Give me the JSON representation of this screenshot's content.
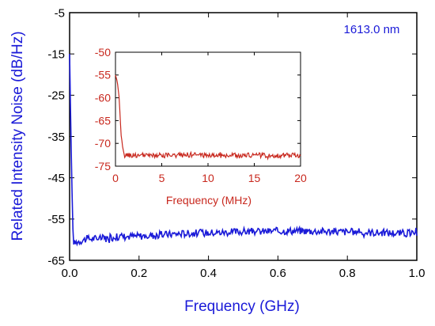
{
  "colors": {
    "main_trace": "#1a1ad8",
    "main_text": "#1a1ad8",
    "inset_trace": "#c8281e",
    "inset_text": "#c8281e",
    "axes": "#000000",
    "background": "#ffffff"
  },
  "chart_data": [
    {
      "type": "line",
      "panel": "main",
      "title": "",
      "annotation": "1613.0 nm",
      "xlabel": "Frequency (GHz)",
      "ylabel": "Related Intensity Noise (dB/Hz)",
      "xlim": [
        0.0,
        1.0
      ],
      "ylim": [
        -65,
        -5
      ],
      "x_ticks": [
        0.0,
        0.2,
        0.4,
        0.6,
        0.8,
        1.0
      ],
      "x_tick_labels": [
        "0.0",
        "0.2",
        "0.4",
        "0.6",
        "0.8",
        "1.0"
      ],
      "y_ticks": [
        -5,
        -15,
        -25,
        -35,
        -45,
        -55,
        -65
      ],
      "y_tick_labels": [
        "-5",
        "-15",
        "-25",
        "-35",
        "-45",
        "-55",
        "-65"
      ],
      "grid": false,
      "series": [
        {
          "x": [
            0.0,
            0.005,
            0.01,
            0.015,
            0.02,
            0.05,
            0.1,
            0.15,
            0.2,
            0.25,
            0.3,
            0.35,
            0.4,
            0.45,
            0.5,
            0.55,
            0.6,
            0.65,
            0.7,
            0.75,
            0.8,
            0.85,
            0.9,
            0.95,
            1.0
          ],
          "y": [
            -15,
            -40,
            -60,
            -61,
            -60.5,
            -59.8,
            -59.6,
            -59.2,
            -59.1,
            -58.9,
            -58.6,
            -58.4,
            -58.3,
            -58.2,
            -58.0,
            -58.0,
            -57.9,
            -57.8,
            -57.9,
            -58.0,
            -58.1,
            -58.2,
            -58.3,
            -58.4,
            -58.5
          ],
          "noise": 0.9
        }
      ]
    },
    {
      "type": "line",
      "panel": "inset",
      "title": "",
      "xlabel": "Frequency (MHz)",
      "ylabel": "",
      "xlim": [
        0,
        20
      ],
      "ylim": [
        -75,
        -50
      ],
      "x_ticks": [
        0,
        5,
        10,
        15,
        20
      ],
      "x_tick_labels": [
        "0",
        "5",
        "10",
        "15",
        "20"
      ],
      "y_ticks": [
        -50,
        -55,
        -60,
        -65,
        -70,
        -75
      ],
      "y_tick_labels": [
        "-50",
        "-55",
        "-60",
        "-65",
        "-70",
        "-75"
      ],
      "grid": false,
      "series": [
        {
          "x": [
            0,
            0.2,
            0.4,
            0.6,
            0.8,
            1.0,
            2,
            4,
            6,
            8,
            10,
            12,
            14,
            16,
            18,
            20
          ],
          "y": [
            -55,
            -56.5,
            -60,
            -68,
            -71.8,
            -72.6,
            -72.6,
            -72.7,
            -72.6,
            -72.5,
            -72.6,
            -72.7,
            -72.6,
            -72.6,
            -72.7,
            -72.6
          ],
          "noise": 0.55
        }
      ]
    }
  ]
}
